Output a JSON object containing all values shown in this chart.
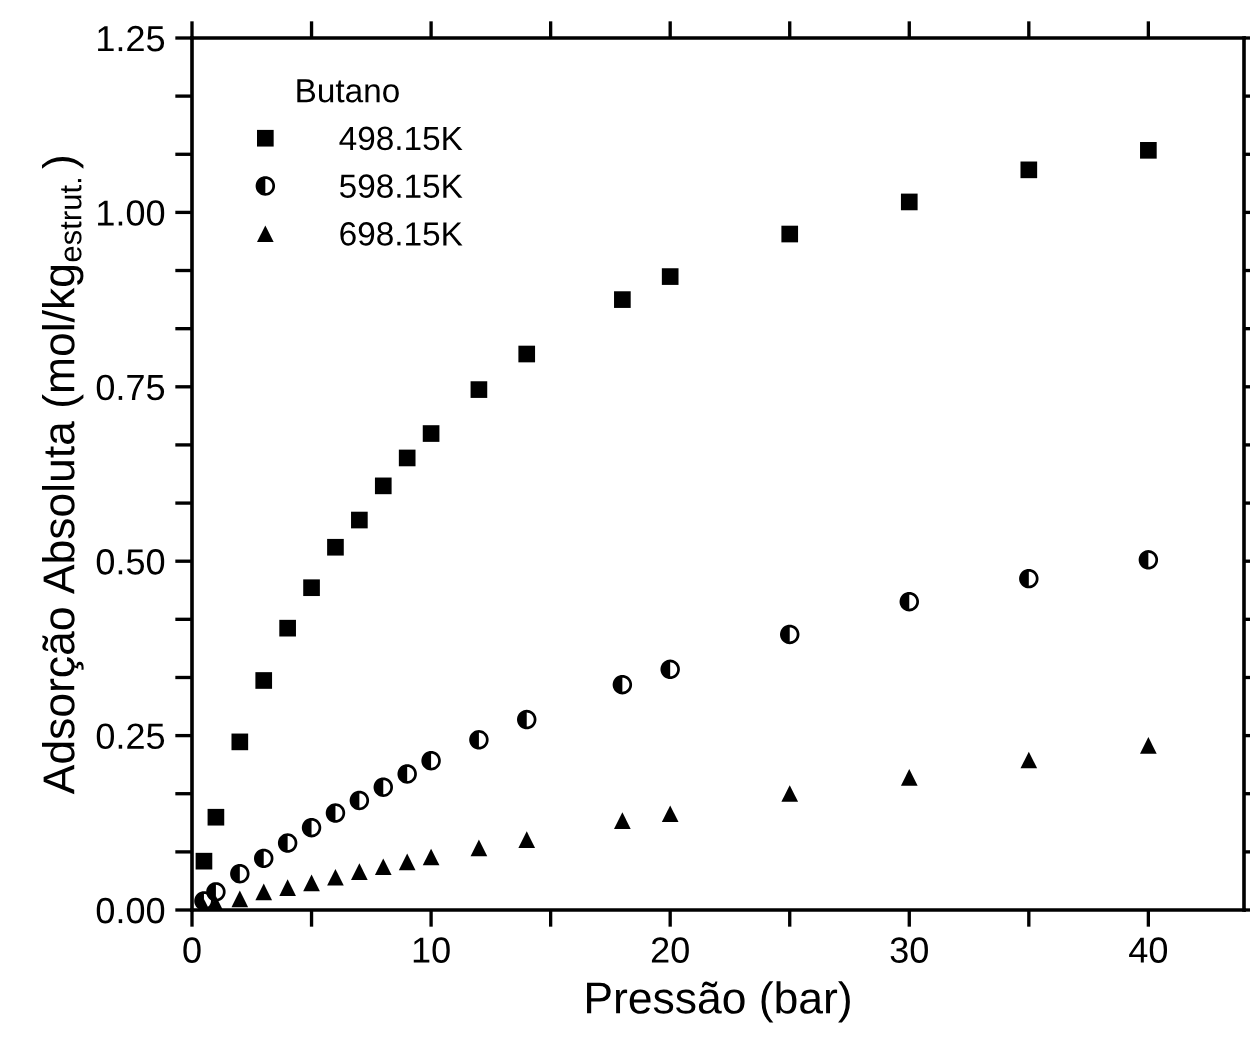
{
  "chart_data": {
    "type": "scatter",
    "xlabel": "Pressão (bar)",
    "ylabel": "Adsorção Absoluta (mol/kg$_{estrut.}$)",
    "legend_title": "Butano",
    "legend": "top left",
    "grid": false,
    "xlim": [
      0,
      44
    ],
    "ylim": [
      0,
      1.25
    ],
    "xticks": [
      0,
      {
        "value": 5,
        "label": null
      },
      10,
      {
        "value": 15,
        "label": null
      },
      20,
      {
        "value": 25,
        "label": null
      },
      30,
      {
        "value": 35,
        "label": null
      },
      40
    ],
    "yticks": [
      {
        "value": 0,
        "label": "0.00"
      },
      {
        "value": 0.0833,
        "label": null
      },
      {
        "value": 0.1667,
        "label": null
      },
      0.25,
      {
        "value": 0.3333,
        "label": null
      },
      {
        "value": 0.4167,
        "label": null
      },
      {
        "value": 0.5,
        "label": "0.50"
      },
      {
        "value": 0.5833,
        "label": null
      },
      {
        "value": 0.6667,
        "label": null
      },
      0.75,
      {
        "value": 0.8333,
        "label": null
      },
      {
        "value": 0.9167,
        "label": null
      },
      {
        "value": 1,
        "label": "1.00"
      },
      {
        "value": 1.0833,
        "label": null
      },
      {
        "value": 1.1667,
        "label": null
      },
      1.25
    ],
    "series": [
      {
        "name": "498.15K",
        "color": "#000000",
        "marker": "square",
        "x": [
          0.5,
          1,
          2,
          3,
          4,
          5,
          6,
          7,
          8,
          9,
          10,
          12,
          14,
          18,
          20,
          25,
          30,
          35,
          40
        ],
        "values": [
          0.07,
          0.133,
          0.241,
          0.329,
          0.404,
          0.462,
          0.52,
          0.559,
          0.608,
          0.648,
          0.683,
          0.746,
          0.797,
          0.875,
          0.908,
          0.969,
          1.015,
          1.061,
          1.089
        ]
      },
      {
        "name": "598.15K",
        "color": "#000000",
        "marker": "circle",
        "x": [
          0.5,
          1,
          2,
          3,
          4,
          5,
          6,
          7,
          8,
          9,
          10,
          12,
          14,
          18,
          20,
          25,
          30,
          35,
          40
        ],
        "values": [
          0.013,
          0.026,
          0.052,
          0.074,
          0.096,
          0.118,
          0.139,
          0.157,
          0.176,
          0.195,
          0.214,
          0.244,
          0.273,
          0.323,
          0.345,
          0.395,
          0.442,
          0.475,
          0.502
        ]
      },
      {
        "name": "698.15K",
        "color": "#000000",
        "marker": "triangle",
        "x": [
          0.5,
          1,
          2,
          3,
          4,
          5,
          6,
          7,
          8,
          9,
          10,
          12,
          14,
          18,
          20,
          25,
          30,
          35,
          40
        ],
        "values": [
          0.004,
          0.008,
          0.016,
          0.026,
          0.032,
          0.039,
          0.047,
          0.055,
          0.062,
          0.069,
          0.076,
          0.089,
          0.101,
          0.128,
          0.138,
          0.167,
          0.19,
          0.215,
          0.236
        ]
      }
    ]
  }
}
